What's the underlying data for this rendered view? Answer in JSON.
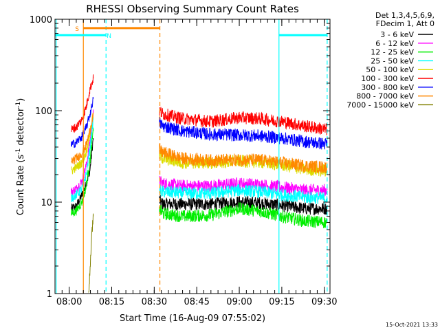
{
  "chart_data": {
    "type": "line",
    "title": "RHESSI Observing Summary Count Rates",
    "xlabel": "Start Time (16-Aug-09 07:55:02)",
    "ylabel_prefix": "Count Rate (s",
    "ylabel_sup1": "-1",
    "ylabel_mid": " detector",
    "ylabel_sup2": "-1",
    "ylabel_suffix": ")",
    "yscale": "log",
    "ylim": [
      1,
      1000
    ],
    "xlim_minutes": [
      0,
      97
    ],
    "y_ticks": [
      {
        "value": 1,
        "label": "1"
      },
      {
        "value": 10,
        "label": "10"
      },
      {
        "value": 100,
        "label": "100"
      },
      {
        "value": 1000,
        "label": "1000"
      }
    ],
    "x_ticks": [
      {
        "minute": 5,
        "label": "08:00"
      },
      {
        "minute": 20,
        "label": "08:15"
      },
      {
        "minute": 35,
        "label": "08:30"
      },
      {
        "minute": 50,
        "label": "08:45"
      },
      {
        "minute": 65,
        "label": "09:00"
      },
      {
        "minute": 80,
        "label": "09:15"
      },
      {
        "minute": 95,
        "label": "09:30"
      }
    ],
    "legend_header": [
      "Det 1,3,4,5,6,9,",
      "FDecim 1, Att 0"
    ],
    "series": [
      {
        "name": "3 - 6 keV",
        "color": "#000000",
        "seg1": [
          [
            5.7,
            8.5
          ],
          [
            7.5,
            9.0
          ],
          [
            9.5,
            12
          ],
          [
            11.0,
            16
          ],
          [
            12.3,
            22
          ],
          [
            13.5,
            50
          ]
        ],
        "seg2": [
          [
            36.8,
            10.5
          ],
          [
            38,
            9.5
          ],
          [
            45,
            9.5
          ],
          [
            55,
            9.5
          ],
          [
            65,
            10.0
          ],
          [
            72,
            9.8
          ],
          [
            80,
            9.2
          ],
          [
            88,
            8.5
          ],
          [
            96,
            8.5
          ]
        ]
      },
      {
        "name": "6 - 12 keV",
        "color": "#ff00ff",
        "seg1": [
          [
            5.7,
            13
          ],
          [
            7.5,
            14
          ],
          [
            9.5,
            17
          ],
          [
            11.0,
            25
          ],
          [
            12.3,
            45
          ],
          [
            13.5,
            95
          ]
        ],
        "seg2": [
          [
            36.8,
            17
          ],
          [
            38,
            16
          ],
          [
            45,
            15
          ],
          [
            55,
            15
          ],
          [
            65,
            16
          ],
          [
            72,
            15.5
          ],
          [
            80,
            14.5
          ],
          [
            88,
            13.5
          ],
          [
            96,
            13.5
          ]
        ]
      },
      {
        "name": "12 - 25 keV",
        "color": "#00ee00",
        "seg1": [
          [
            5.7,
            7.5
          ],
          [
            7.5,
            8
          ],
          [
            9.5,
            10
          ],
          [
            11.0,
            15
          ],
          [
            12.3,
            28
          ],
          [
            13.5,
            60
          ]
        ],
        "seg2": [
          [
            36.8,
            8.5
          ],
          [
            38,
            7.5
          ],
          [
            45,
            7.0
          ],
          [
            55,
            7.2
          ],
          [
            65,
            8.5
          ],
          [
            72,
            8.0
          ],
          [
            80,
            7.0
          ],
          [
            88,
            6.2
          ],
          [
            96,
            6.0
          ]
        ]
      },
      {
        "name": "25 - 50 keV",
        "color": "#00ffff",
        "seg1": [
          [
            5.7,
            11
          ],
          [
            7.5,
            12
          ],
          [
            9.5,
            14
          ],
          [
            11.0,
            20
          ],
          [
            12.3,
            38
          ],
          [
            13.5,
            80
          ]
        ],
        "seg2": [
          [
            36.8,
            13.5
          ],
          [
            38,
            13
          ],
          [
            45,
            12.5
          ],
          [
            55,
            12.5
          ],
          [
            65,
            13.5
          ],
          [
            72,
            13
          ],
          [
            80,
            12
          ],
          [
            88,
            11.3
          ],
          [
            96,
            11
          ]
        ]
      },
      {
        "name": "50 - 100 keV",
        "color": "#dddd00",
        "seg1": [
          [
            5.7,
            22
          ],
          [
            7.5,
            24
          ],
          [
            9.5,
            27
          ],
          [
            11.0,
            35
          ],
          [
            12.3,
            55
          ],
          [
            13.5,
            95
          ]
        ],
        "seg2": [
          [
            36.8,
            33
          ],
          [
            38,
            30
          ],
          [
            45,
            27
          ],
          [
            55,
            27
          ],
          [
            65,
            28
          ],
          [
            72,
            27.5
          ],
          [
            80,
            25.5
          ],
          [
            88,
            23
          ],
          [
            96,
            22
          ]
        ]
      },
      {
        "name": "100 - 300 keV",
        "color": "#ff0000",
        "seg1": [
          [
            5.7,
            62
          ],
          [
            7.5,
            66
          ],
          [
            9.5,
            80
          ],
          [
            11.0,
            110
          ],
          [
            12.3,
            170
          ],
          [
            13.5,
            225
          ]
        ],
        "seg2": [
          [
            36.8,
            100
          ],
          [
            38,
            92
          ],
          [
            45,
            82
          ],
          [
            55,
            76
          ],
          [
            65,
            84
          ],
          [
            72,
            82
          ],
          [
            80,
            76
          ],
          [
            88,
            68
          ],
          [
            96,
            62
          ]
        ]
      },
      {
        "name": "300 - 800 keV",
        "color": "#0000ff",
        "seg1": [
          [
            5.7,
            42
          ],
          [
            7.5,
            45
          ],
          [
            9.5,
            52
          ],
          [
            11.0,
            65
          ],
          [
            12.3,
            90
          ],
          [
            13.5,
            135
          ]
        ],
        "seg2": [
          [
            36.8,
            74
          ],
          [
            38,
            68
          ],
          [
            45,
            60
          ],
          [
            55,
            55
          ],
          [
            65,
            54
          ],
          [
            72,
            53
          ],
          [
            80,
            50
          ],
          [
            88,
            46
          ],
          [
            96,
            43
          ]
        ]
      },
      {
        "name": "800 - 7000 keV",
        "color": "#ff8800",
        "seg1": [
          [
            5.7,
            28
          ],
          [
            7.5,
            30
          ],
          [
            9.5,
            34
          ],
          [
            11.0,
            42
          ],
          [
            12.3,
            60
          ],
          [
            13.5,
            92
          ]
        ],
        "seg2": [
          [
            36.8,
            37
          ],
          [
            38,
            35
          ],
          [
            45,
            30
          ],
          [
            55,
            28.5
          ],
          [
            65,
            29
          ],
          [
            72,
            29
          ],
          [
            80,
            27
          ],
          [
            88,
            25
          ],
          [
            96,
            24
          ]
        ]
      },
      {
        "name": "7000 - 15000 keV",
        "color": "#808000",
        "seg1": [
          [
            11.8,
            1.0
          ],
          [
            12.2,
            1.5
          ],
          [
            12.6,
            2.5
          ],
          [
            13.0,
            4.5
          ],
          [
            13.5,
            7.0
          ]
        ],
        "seg2": []
      }
    ],
    "flags": [
      {
        "label": "S",
        "color": "#ff8800",
        "start": 10,
        "end": 37,
        "level": 800
      },
      {
        "label": "N",
        "color": "#00ffff",
        "start": 0,
        "end": 18,
        "level": 670
      },
      {
        "label": "",
        "color": "#00ffff",
        "start": 79,
        "end": 96,
        "level": 670
      }
    ],
    "vertical_lines": [
      {
        "minute": 0.4,
        "color": "#00ffff",
        "style": "solid"
      },
      {
        "minute": 10,
        "color": "#ff8800",
        "style": "solid"
      },
      {
        "minute": 18,
        "color": "#00ffff",
        "style": "dashed"
      },
      {
        "minute": 37,
        "color": "#ff8800",
        "style": "dashed"
      },
      {
        "minute": 79,
        "color": "#00ffff",
        "style": "solid"
      },
      {
        "minute": 96,
        "color": "#00ffff",
        "style": "dashed"
      }
    ],
    "timestamp": "15-Oct-2021 13:33"
  }
}
